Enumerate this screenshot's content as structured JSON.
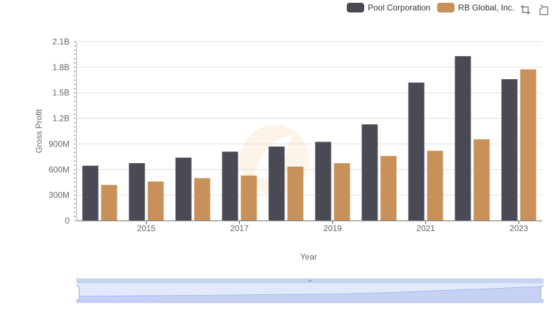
{
  "chart_data": {
    "type": "bar",
    "x": [
      2014,
      2015,
      2016,
      2017,
      2018,
      2019,
      2020,
      2021,
      2022,
      2023
    ],
    "x_tick_labels": [
      "2015",
      "2017",
      "2019",
      "2021",
      "2023"
    ],
    "xlabel": "Year",
    "ylabel": "Gross Profit",
    "ylim": [
      0,
      2100000000
    ],
    "y_tick_labels": [
      "0",
      "300M",
      "600M",
      "900M",
      "1.2B",
      "1.5B",
      "1.8B",
      "2.1B"
    ],
    "y_ticks": [
      0,
      300000000,
      600000000,
      900000000,
      1200000000,
      1500000000,
      1800000000,
      2100000000
    ],
    "grid": true,
    "legend_position": "top-right",
    "series": [
      {
        "name": "Pool Corporation",
        "color": "#4a4a55",
        "values": [
          645000000,
          675000000,
          740000000,
          810000000,
          870000000,
          925000000,
          1130000000,
          1620000000,
          1930000000,
          1660000000
        ]
      },
      {
        "name": "RB Global, Inc.",
        "color": "#c8915a",
        "values": [
          420000000,
          460000000,
          500000000,
          530000000,
          635000000,
          675000000,
          760000000,
          820000000,
          955000000,
          1775000000
        ]
      }
    ]
  },
  "toolbox": {
    "zoom_icon": "zoom-select-icon",
    "reset_icon": "zoom-reset-icon"
  }
}
